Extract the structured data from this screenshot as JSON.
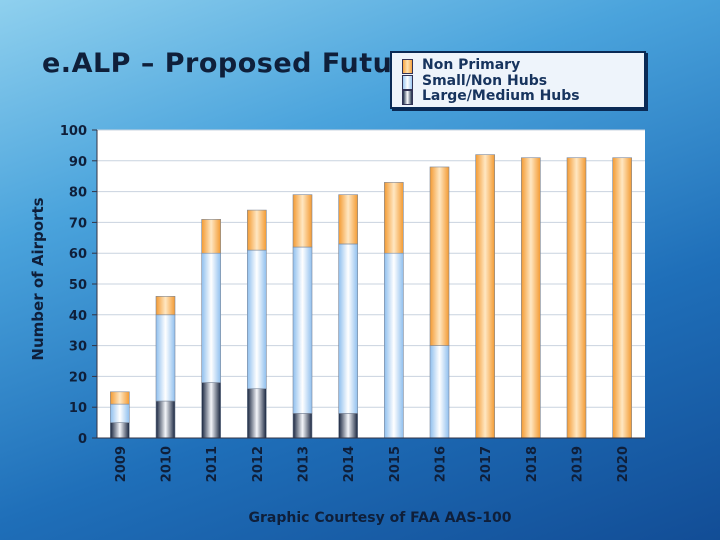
{
  "slide": {
    "title": "e.ALP – Proposed Future",
    "footer": "Graphic Courtesy of FAA AAS-100"
  },
  "chart_data": {
    "type": "bar",
    "stacked": true,
    "ylabel": "Number of Airports",
    "xlabel": "",
    "ylim": [
      0,
      100
    ],
    "yticks": [
      0,
      10,
      20,
      30,
      40,
      50,
      60,
      70,
      80,
      90,
      100
    ],
    "grid": true,
    "legend_position": "top-right",
    "categories": [
      "2009",
      "2010",
      "2011",
      "2012",
      "2013",
      "2014",
      "2015",
      "2016",
      "2017",
      "2018",
      "2019",
      "2020"
    ],
    "series": [
      {
        "name": "Large/Medium Hubs",
        "color": "#1c2c48",
        "values": [
          5,
          12,
          18,
          16,
          8,
          8,
          0,
          0,
          0,
          0,
          0,
          0
        ]
      },
      {
        "name": "Small/Non Hubs",
        "color": "#9cc8f2",
        "values": [
          6,
          28,
          42,
          45,
          54,
          55,
          60,
          30,
          0,
          0,
          0,
          0
        ]
      },
      {
        "name": "Non Primary",
        "color": "#f6a340",
        "values": [
          4,
          6,
          11,
          13,
          17,
          16,
          23,
          58,
          92,
          91,
          91,
          91
        ]
      }
    ]
  }
}
